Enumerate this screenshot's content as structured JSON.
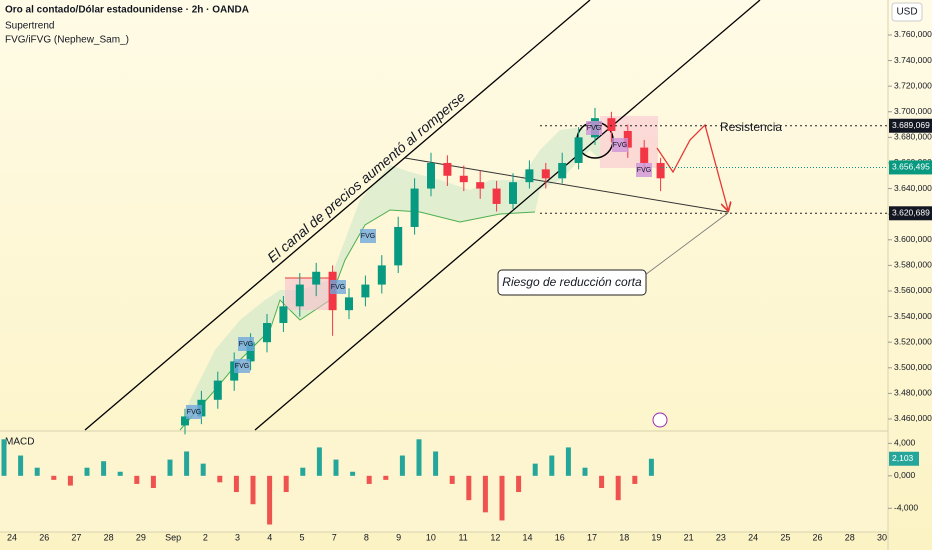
{
  "chart_data": {
    "type": "candlestick",
    "title": "Oro al contado/Dólar estadounidense · 2h · OANDA",
    "indicators": [
      "Supertrend",
      "FVG/iFVG (Nephew_Sam_)"
    ],
    "currency": "USD",
    "x_labels": [
      "24",
      "26",
      "27",
      "28",
      "29",
      "Sep",
      "2",
      "3",
      "4",
      "5",
      "7",
      "8",
      "9",
      "10",
      "11",
      "12",
      "14",
      "16",
      "17",
      "18",
      "19",
      "21",
      "23",
      "24",
      "25",
      "26",
      "28",
      "30"
    ],
    "ylim": [
      3.4514,
      3.7873
    ],
    "yticks": [
      {
        "value": 3.46,
        "label": "3.460,000"
      },
      {
        "value": 3.48,
        "label": "3.480,000"
      },
      {
        "value": 3.5,
        "label": "3.500,000"
      },
      {
        "value": 3.52,
        "label": "3.520,000"
      },
      {
        "value": 3.54,
        "label": "3.540,000"
      },
      {
        "value": 3.56,
        "label": "3.560,000"
      },
      {
        "value": 3.58,
        "label": "3.580,000"
      },
      {
        "value": 3.6,
        "label": "3.600,000"
      },
      {
        "value": 3.62,
        "label": "3.620,000"
      },
      {
        "value": 3.64,
        "label": "3.640,000"
      },
      {
        "value": 3.66,
        "label": "3.660,000"
      },
      {
        "value": 3.68,
        "label": "3.680,000"
      },
      {
        "value": 3.7,
        "label": "3.700,000"
      },
      {
        "value": 3.72,
        "label": "3.720,000"
      },
      {
        "value": 3.74,
        "label": "3.740,000"
      },
      {
        "value": 3.76,
        "label": "3.760,000"
      }
    ],
    "candles": {
      "open": [
        3.455,
        3.462,
        3.475,
        3.49,
        3.505,
        3.52,
        3.535,
        3.548,
        3.565,
        3.575,
        3.545,
        3.555,
        3.565,
        3.58,
        3.61,
        3.64,
        3.66,
        3.65,
        3.645,
        3.64,
        3.628,
        3.645,
        3.655,
        3.648,
        3.66,
        3.68,
        3.695,
        3.685,
        3.672,
        3.66
      ],
      "high": [
        3.468,
        3.482,
        3.497,
        3.512,
        3.527,
        3.542,
        3.556,
        3.574,
        3.582,
        3.58,
        3.562,
        3.572,
        3.588,
        3.618,
        3.648,
        3.668,
        3.666,
        3.658,
        3.654,
        3.646,
        3.652,
        3.662,
        3.66,
        3.668,
        3.688,
        3.703,
        3.7,
        3.69,
        3.678,
        3.664
      ],
      "low": [
        3.448,
        3.456,
        3.468,
        3.482,
        3.498,
        3.512,
        3.528,
        3.54,
        3.556,
        3.525,
        3.538,
        3.548,
        3.558,
        3.574,
        3.604,
        3.634,
        3.642,
        3.638,
        3.632,
        3.622,
        3.624,
        3.64,
        3.64,
        3.644,
        3.655,
        3.674,
        3.676,
        3.664,
        3.652,
        3.638
      ],
      "close": [
        3.462,
        3.475,
        3.49,
        3.505,
        3.52,
        3.535,
        3.548,
        3.565,
        3.575,
        3.545,
        3.555,
        3.565,
        3.58,
        3.61,
        3.64,
        3.66,
        3.65,
        3.645,
        3.64,
        3.628,
        3.645,
        3.655,
        3.648,
        3.66,
        3.68,
        3.695,
        3.685,
        3.672,
        3.66,
        3.648
      ]
    },
    "up_color": "#089981",
    "down_color": "#f23645",
    "price_levels": [
      {
        "value": 3.689069,
        "label": "3.689,069"
      },
      {
        "value": 3.620689,
        "label": "3.620,689"
      }
    ],
    "current_price": {
      "value": 3.656495,
      "label": "3.656,495"
    },
    "annotations": {
      "channel": "El canal de precios aumentó al romperse",
      "resistance": "Resistencia",
      "risk": "Riesgo de reducción corta",
      "fvg": "FVG"
    },
    "macd": {
      "title": "MACD",
      "values": [
        4.5,
        2.5,
        1,
        -0.5,
        -1.2,
        1,
        1.8,
        0.5,
        -1,
        -1.5,
        2,
        3,
        1.5,
        -0.8,
        -2,
        -3.5,
        -6,
        -2,
        1,
        3.5,
        2,
        0.5,
        -1,
        -0.5,
        2.5,
        4.5,
        3,
        -1,
        -3,
        -4.5,
        -5.5,
        -2,
        1.5,
        2.5,
        3.5,
        1,
        -1.5,
        -3,
        -1,
        2.1
      ],
      "ylim": [
        -6.8,
        5.4
      ],
      "yticks": [
        {
          "value": 4,
          "label": "4,000"
        },
        {
          "value": 0,
          "label": "0,000"
        },
        {
          "value": -4,
          "label": "-4,000"
        }
      ],
      "last": {
        "value": 2.103,
        "label": "2,103"
      },
      "pos_color": "#26a69a",
      "neg_color": "#ef5350"
    }
  }
}
